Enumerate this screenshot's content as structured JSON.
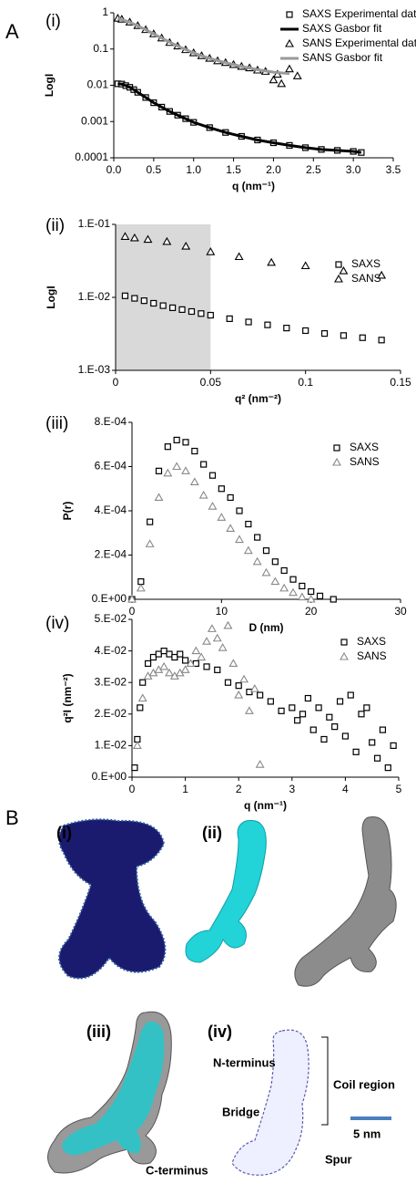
{
  "panel_a_label": "A",
  "chart_data": [
    {
      "type": "scatter",
      "label": "(i)",
      "y_label": "LogI",
      "x_label": "q (nm⁻¹)",
      "log_y": true,
      "xlim": [
        0,
        3.5
      ],
      "xticks": [
        {
          "value": 0,
          "label": "0.0"
        },
        0.5,
        {
          "value": 1,
          "label": "1.0"
        },
        1.5,
        {
          "value": 2,
          "label": "2.0"
        },
        2.5,
        {
          "value": 3,
          "label": "3.0"
        },
        3.5
      ],
      "ylim": [
        0.0001,
        1
      ],
      "yticks": [
        0.0001,
        0.001,
        0.01,
        0.1,
        1
      ],
      "series": [
        {
          "name": "SAXS Experimental data",
          "marker": "square",
          "color": "#000000",
          "x": [
            0.05,
            0.1,
            0.15,
            0.2,
            0.25,
            0.3,
            0.4,
            0.5,
            0.6,
            0.7,
            0.8,
            0.9,
            1.0,
            1.2,
            1.4,
            1.6,
            1.8,
            2.0,
            2.2,
            2.4,
            2.6,
            2.8,
            3.0,
            3.1
          ],
          "values": [
            0.011,
            0.0108,
            0.0098,
            0.0088,
            0.0076,
            0.0064,
            0.0046,
            0.0033,
            0.0025,
            0.0019,
            0.0015,
            0.0012,
            0.00095,
            0.00068,
            0.0005,
            0.00039,
            0.00031,
            0.00026,
            0.00022,
            0.00019,
            0.00017,
            0.00016,
            0.00015,
            0.00014
          ]
        },
        {
          "name": "SAXS Gasbor fit",
          "marker": "line",
          "color": "#000000",
          "x": [
            0.05,
            0.1,
            0.15,
            0.2,
            0.25,
            0.3,
            0.4,
            0.5,
            0.6,
            0.7,
            0.8,
            0.9,
            1.0,
            1.2,
            1.4,
            1.6,
            1.8,
            2.0,
            2.2,
            2.4,
            2.6,
            2.8,
            3.0,
            3.1
          ],
          "values": [
            0.011,
            0.0108,
            0.0098,
            0.0088,
            0.0076,
            0.0064,
            0.0046,
            0.0033,
            0.0025,
            0.0019,
            0.0015,
            0.0012,
            0.00095,
            0.00068,
            0.0005,
            0.00039,
            0.00031,
            0.00026,
            0.00022,
            0.00019,
            0.00017,
            0.00016,
            0.00015,
            0.00014
          ]
        },
        {
          "name": "SANS Experimental data",
          "marker": "triangle",
          "color": "#000000",
          "x": [
            0.05,
            0.1,
            0.2,
            0.3,
            0.4,
            0.5,
            0.6,
            0.7,
            0.8,
            0.9,
            1.0,
            1.1,
            1.2,
            1.3,
            1.4,
            1.5,
            1.6,
            1.7,
            1.8,
            1.9,
            2.0,
            2.05,
            2.1,
            2.2,
            2.3
          ],
          "values": [
            0.7,
            0.66,
            0.55,
            0.44,
            0.34,
            0.26,
            0.2,
            0.15,
            0.12,
            0.095,
            0.078,
            0.065,
            0.055,
            0.047,
            0.042,
            0.037,
            0.033,
            0.03,
            0.026,
            0.024,
            0.014,
            0.02,
            0.011,
            0.028,
            0.018
          ]
        },
        {
          "name": "SANS Gasbor fit",
          "marker": "line",
          "color": "#999999",
          "x": [
            0.05,
            0.2,
            0.4,
            0.6,
            0.8,
            1.0,
            1.2,
            1.4,
            1.6,
            1.8,
            2.0,
            2.2
          ],
          "values": [
            0.7,
            0.55,
            0.34,
            0.2,
            0.12,
            0.078,
            0.055,
            0.042,
            0.033,
            0.027,
            0.023,
            0.021
          ]
        }
      ]
    },
    {
      "type": "scatter",
      "label": "(ii)",
      "y_label": "LogI",
      "x_label": "q² (nm⁻²)",
      "log_y": true,
      "highlight_x": [
        0,
        0.05
      ],
      "xlim": [
        0,
        0.15
      ],
      "xticks": [
        0,
        0.05,
        0.1,
        0.15
      ],
      "ylim": [
        0.001,
        0.1
      ],
      "yticks": [
        {
          "value": 0.001,
          "label": "1.E-03"
        },
        {
          "value": 0.01,
          "label": "1.E-02"
        },
        {
          "value": 0.1,
          "label": "1.E-01"
        }
      ],
      "series": [
        {
          "name": "SAXS",
          "marker": "square",
          "color": "#000000",
          "x": [
            0.005,
            0.01,
            0.015,
            0.02,
            0.025,
            0.03,
            0.035,
            0.04,
            0.045,
            0.05,
            0.06,
            0.07,
            0.08,
            0.09,
            0.1,
            0.11,
            0.12,
            0.13,
            0.14
          ],
          "values": [
            0.0105,
            0.0097,
            0.009,
            0.0083,
            0.0077,
            0.0072,
            0.0068,
            0.0064,
            0.006,
            0.0057,
            0.0051,
            0.0046,
            0.0042,
            0.0038,
            0.0035,
            0.0032,
            0.003,
            0.0028,
            0.0026
          ]
        },
        {
          "name": "SANS",
          "marker": "triangle",
          "color": "#000000",
          "x": [
            0.005,
            0.01,
            0.017,
            0.027,
            0.037,
            0.05,
            0.065,
            0.082,
            0.1,
            0.12,
            0.14
          ],
          "values": [
            0.068,
            0.065,
            0.062,
            0.058,
            0.05,
            0.042,
            0.036,
            0.03,
            0.027,
            0.023,
            0.02
          ]
        }
      ]
    },
    {
      "type": "scatter",
      "label": "(iii)",
      "y_label": "P(r)",
      "x_label": "D (nm)",
      "log_y": false,
      "xlim": [
        0,
        30
      ],
      "xticks": [
        0,
        10,
        20,
        30
      ],
      "ylim": [
        0,
        0.0008
      ],
      "yticks": [
        {
          "value": 0,
          "label": "0.E+00"
        },
        {
          "value": 0.0002,
          "label": "2.E-04"
        },
        {
          "value": 0.0004,
          "label": "4.E-04"
        },
        {
          "value": 0.0006,
          "label": "6.E-04"
        },
        {
          "value": 0.0008,
          "label": "8.E-04"
        }
      ],
      "series": [
        {
          "name": "SAXS",
          "marker": "square",
          "color": "#000000",
          "x": [
            0,
            1,
            2,
            3,
            4,
            5,
            6,
            7,
            8,
            9,
            10,
            11,
            12,
            13,
            14,
            15,
            16,
            17,
            18,
            19,
            20,
            21,
            22.5
          ],
          "values": [
            0,
            8e-05,
            0.00035,
            0.00058,
            0.00069,
            0.00072,
            0.00071,
            0.00067,
            0.00061,
            0.00056,
            0.0005,
            0.00046,
            0.0004,
            0.00034,
            0.00028,
            0.00022,
            0.00017,
            0.00013,
            9e-05,
            6e-05,
            3.5e-05,
            1.5e-05,
            0
          ]
        },
        {
          "name": "SANS",
          "marker": "triangle",
          "color": "#888888",
          "x": [
            0,
            1,
            2,
            3,
            4,
            5,
            6,
            7,
            8,
            9,
            10,
            11,
            12,
            13,
            14,
            15,
            16,
            17,
            18,
            19,
            20
          ],
          "values": [
            0,
            5e-05,
            0.00025,
            0.00046,
            0.00057,
            0.0006,
            0.00058,
            0.00053,
            0.00047,
            0.00042,
            0.00037,
            0.00032,
            0.00027,
            0.00022,
            0.00017,
            0.00012,
            8e-05,
            5e-05,
            3e-05,
            1e-05,
            0
          ]
        }
      ]
    },
    {
      "type": "scatter",
      "label": "(iv)",
      "y_label": "q²I (nm⁻²)",
      "x_label": "q (nm⁻¹)",
      "log_y": false,
      "xlim": [
        0,
        5
      ],
      "xticks": [
        0,
        1,
        2,
        3,
        4,
        5
      ],
      "ylim": [
        0,
        0.05
      ],
      "yticks": [
        {
          "value": 0,
          "label": "0.E+00"
        },
        {
          "value": 0.01,
          "label": "1.E-02"
        },
        {
          "value": 0.02,
          "label": "2.E-02"
        },
        {
          "value": 0.03,
          "label": "3.E-02"
        },
        {
          "value": 0.04,
          "label": "4.E-02"
        },
        {
          "value": 0.05,
          "label": "5.E-02"
        }
      ],
      "series": [
        {
          "name": "SAXS",
          "marker": "square",
          "color": "#000000",
          "x": [
            0.05,
            0.1,
            0.15,
            0.2,
            0.3,
            0.4,
            0.5,
            0.6,
            0.7,
            0.8,
            0.9,
            1.0,
            1.2,
            1.4,
            1.6,
            1.8,
            2.0,
            2.2,
            2.4,
            2.6,
            2.8,
            3.0,
            3.1,
            3.2,
            3.3,
            3.4,
            3.5,
            3.6,
            3.7,
            3.8,
            3.9,
            4.0,
            4.1,
            4.2,
            4.3,
            4.4,
            4.5,
            4.6,
            4.7,
            4.8,
            4.9
          ],
          "values": [
            0.003,
            0.012,
            0.022,
            0.03,
            0.036,
            0.038,
            0.039,
            0.04,
            0.039,
            0.038,
            0.039,
            0.037,
            0.036,
            0.035,
            0.034,
            0.03,
            0.029,
            0.027,
            0.026,
            0.024,
            0.021,
            0.022,
            0.018,
            0.02,
            0.025,
            0.015,
            0.022,
            0.012,
            0.019,
            0.016,
            0.024,
            0.013,
            0.026,
            0.008,
            0.02,
            0.022,
            0.011,
            0.006,
            0.015,
            0.003,
            0.01
          ]
        },
        {
          "name": "SANS",
          "marker": "triangle",
          "color": "#888888",
          "x": [
            0.1,
            0.2,
            0.3,
            0.4,
            0.5,
            0.6,
            0.7,
            0.8,
            0.9,
            1.0,
            1.1,
            1.2,
            1.3,
            1.4,
            1.5,
            1.6,
            1.7,
            1.8,
            1.9,
            2.0,
            2.1,
            2.2,
            2.3,
            2.4
          ],
          "values": [
            0.01,
            0.025,
            0.032,
            0.033,
            0.034,
            0.035,
            0.033,
            0.032,
            0.033,
            0.034,
            0.036,
            0.04,
            0.038,
            0.043,
            0.047,
            0.044,
            0.041,
            0.048,
            0.036,
            0.026,
            0.031,
            0.021,
            0.028,
            0.004
          ]
        }
      ]
    }
  ],
  "panel_b": {
    "label": "B",
    "subpanel_labels": [
      "(i)",
      "(ii)",
      "(iii)",
      "(iv)"
    ],
    "annotations": [
      "N-terminus",
      "Coil region",
      "Bridge",
      "5 nm",
      "Spur",
      "C-terminus"
    ]
  }
}
